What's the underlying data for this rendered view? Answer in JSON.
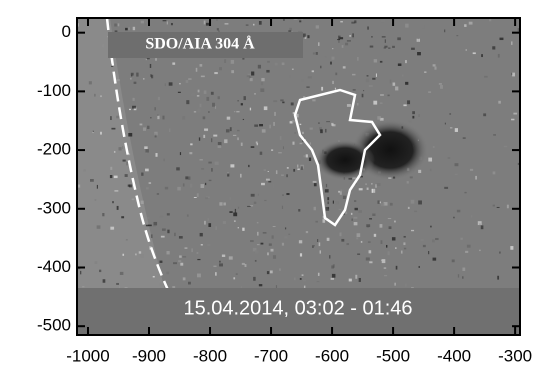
{
  "chart_data": {
    "type": "image",
    "title": "SDO/AIA 304 Å",
    "subtitle": "15.04.2014, 03:02 - 01:46",
    "xlim": [
      -1018,
      -292
    ],
    "xticks": [
      -1000,
      -900,
      -800,
      -700,
      -600,
      -500,
      -400,
      -300
    ],
    "ylim": [
      -515,
      25
    ],
    "yticks": [
      0,
      -100,
      -200,
      -300,
      -400,
      -500
    ]
  }
}
